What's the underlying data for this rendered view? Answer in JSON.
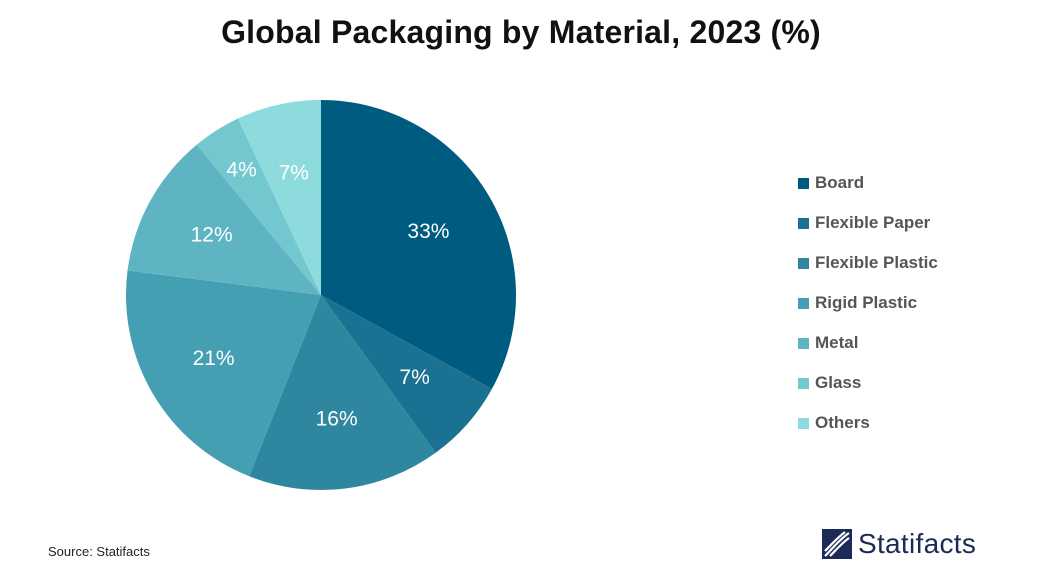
{
  "chart_data": {
    "type": "pie",
    "title": "Global Packaging by Material, 2023 (%)",
    "slices": [
      {
        "label": "Board",
        "value": 33,
        "display": "33%",
        "color": "#005b80"
      },
      {
        "label": "Flexible Paper",
        "value": 7,
        "display": "7%",
        "color": "#1a7191"
      },
      {
        "label": "Flexible Plastic",
        "value": 16,
        "display": "16%",
        "color": "#2e879f"
      },
      {
        "label": "Rigid Plastic",
        "value": 21,
        "display": "21%",
        "color": "#459fb2"
      },
      {
        "label": "Metal",
        "value": 12,
        "display": "12%",
        "color": "#5eb4c2"
      },
      {
        "label": "Glass",
        "value": 4,
        "display": "4%",
        "color": "#73c8d0"
      },
      {
        "label": "Others",
        "value": 7,
        "display": "7%",
        "color": "#8ddbdc"
      }
    ],
    "legend_position": "right"
  },
  "footer": {
    "source": "Source: Statifacts",
    "brand": "Statifacts"
  },
  "colors": {
    "brand_logo": "#1d2a57"
  }
}
